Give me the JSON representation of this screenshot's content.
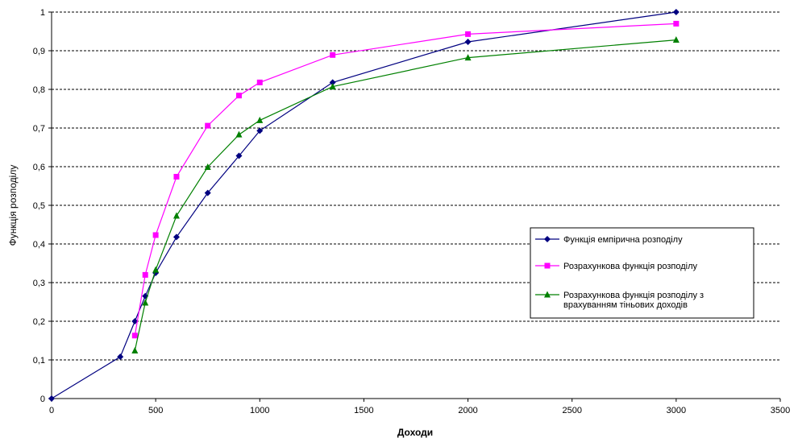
{
  "chart_data": {
    "type": "line",
    "xlabel": "Доходи",
    "ylabel": "Функція розподілу",
    "xlim": [
      0,
      3500
    ],
    "ylim": [
      0,
      1
    ],
    "x_ticks": [
      0,
      500,
      1000,
      1500,
      2000,
      2500,
      3000,
      3500
    ],
    "y_ticks": [
      0,
      0.1,
      0.2,
      0.3,
      0.4,
      0.5,
      0.6,
      0.7,
      0.8,
      0.9,
      1
    ],
    "y_tick_labels": [
      "0",
      "0,1",
      "0,2",
      "0,3",
      "0,4",
      "0,5",
      "0,6",
      "0,7",
      "0,8",
      "0,9",
      "1"
    ],
    "grid": "horizontal dashed",
    "legend_position": "right",
    "series": [
      {
        "name": "Функція емпірична розподілу",
        "color": "#000080",
        "marker": "diamond",
        "x": [
          0,
          330,
          400,
          450,
          500,
          600,
          750,
          900,
          1000,
          1350,
          2000,
          3000
        ],
        "y": [
          0,
          0.108,
          0.2,
          0.265,
          0.325,
          0.418,
          0.532,
          0.628,
          0.693,
          0.818,
          0.923,
          1.0
        ]
      },
      {
        "name": "Розрахункова функція розподілу",
        "color": "#ff00ff",
        "marker": "square",
        "x": [
          400,
          450,
          500,
          600,
          750,
          900,
          1000,
          1350,
          2000,
          3000
        ],
        "y": [
          0.163,
          0.32,
          0.423,
          0.574,
          0.706,
          0.784,
          0.818,
          0.889,
          0.943,
          0.97
        ]
      },
      {
        "name": "Розрахункова функція розподілу з врахуванням тіньових доходів",
        "legend_lines": [
          "Розрахункова функція розподілу з",
          "врахуванням тіньових доходів"
        ],
        "color": "#008000",
        "marker": "triangle",
        "x": [
          400,
          450,
          500,
          600,
          750,
          900,
          1000,
          1350,
          2000,
          3000
        ],
        "y": [
          0.124,
          0.248,
          0.333,
          0.473,
          0.599,
          0.683,
          0.72,
          0.807,
          0.882,
          0.928
        ]
      }
    ]
  }
}
